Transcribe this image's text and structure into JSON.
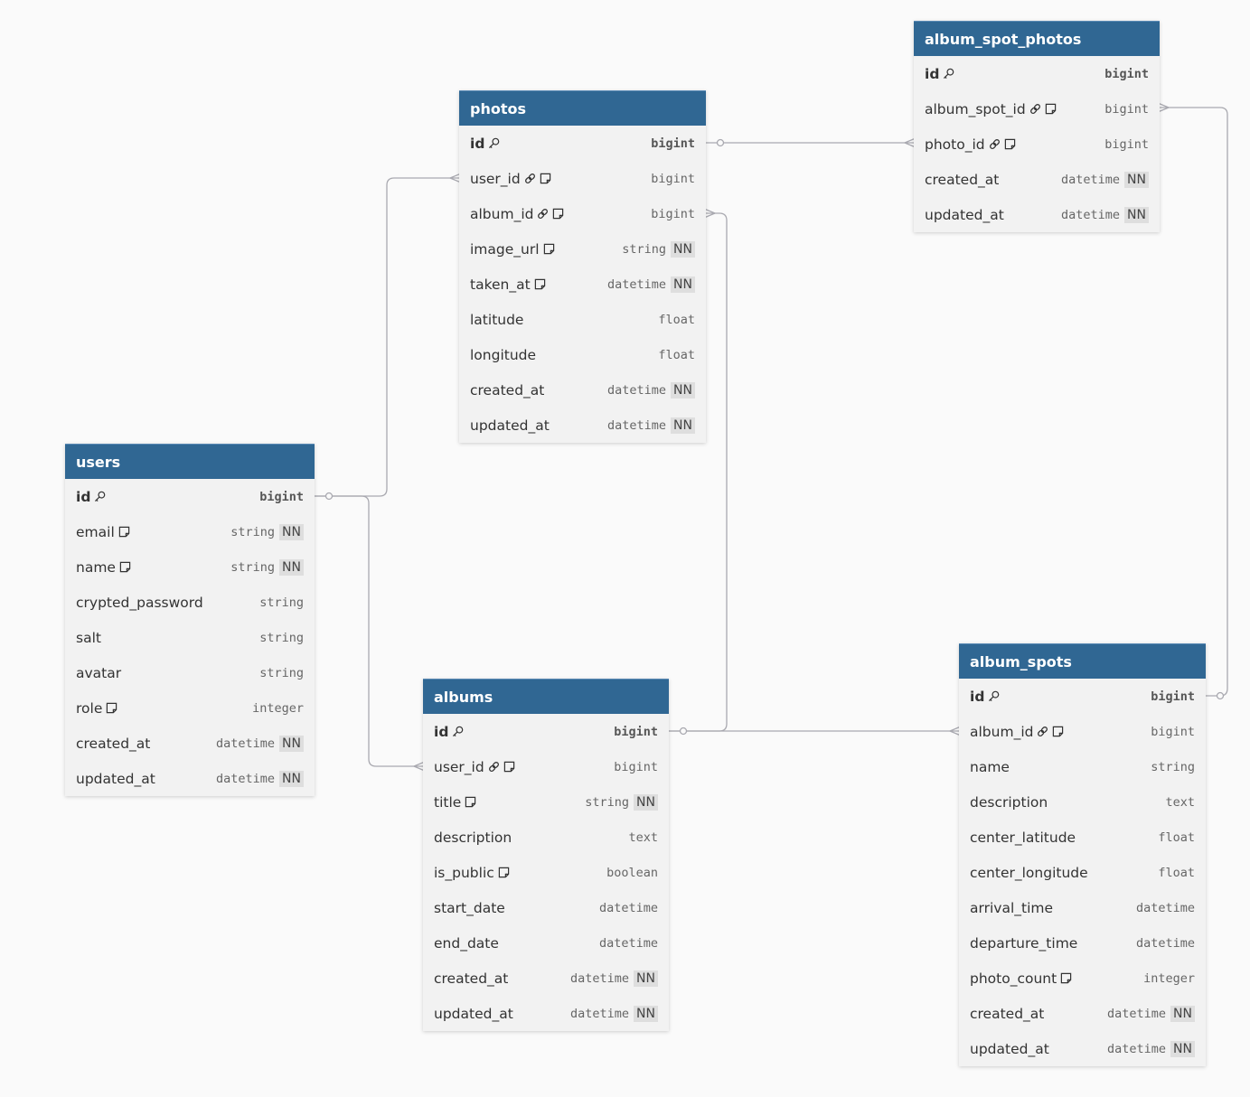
{
  "colors": {
    "header": "#306793",
    "body": "#f2f2f2",
    "line": "#a9a9b0"
  },
  "tables": [
    {
      "id": "album_spot_photos",
      "name": "album_spot_photos",
      "columns": [
        {
          "name": "id",
          "icons": [
            "key-icon"
          ],
          "type": "bigint",
          "pk": true
        },
        {
          "name": "album_spot_id",
          "icons": [
            "link-icon",
            "note-icon"
          ],
          "type": "bigint"
        },
        {
          "name": "photo_id",
          "icons": [
            "link-icon",
            "note-icon"
          ],
          "type": "bigint"
        },
        {
          "name": "created_at",
          "icons": [],
          "type": "datetime",
          "nn": "NN"
        },
        {
          "name": "updated_at",
          "icons": [],
          "type": "datetime",
          "nn": "NN"
        }
      ]
    },
    {
      "id": "photos",
      "name": "photos",
      "columns": [
        {
          "name": "id",
          "icons": [
            "key-icon"
          ],
          "type": "bigint",
          "pk": true
        },
        {
          "name": "user_id",
          "icons": [
            "link-icon",
            "note-icon"
          ],
          "type": "bigint"
        },
        {
          "name": "album_id",
          "icons": [
            "link-icon",
            "note-icon"
          ],
          "type": "bigint"
        },
        {
          "name": "image_url",
          "icons": [
            "note-icon"
          ],
          "type": "string",
          "nn": "NN"
        },
        {
          "name": "taken_at",
          "icons": [
            "note-icon"
          ],
          "type": "datetime",
          "nn": "NN"
        },
        {
          "name": "latitude",
          "icons": [],
          "type": "float"
        },
        {
          "name": "longitude",
          "icons": [],
          "type": "float"
        },
        {
          "name": "created_at",
          "icons": [],
          "type": "datetime",
          "nn": "NN"
        },
        {
          "name": "updated_at",
          "icons": [],
          "type": "datetime",
          "nn": "NN"
        }
      ]
    },
    {
      "id": "users",
      "name": "users",
      "columns": [
        {
          "name": "id",
          "icons": [
            "key-icon"
          ],
          "type": "bigint",
          "pk": true
        },
        {
          "name": "email",
          "icons": [
            "note-icon"
          ],
          "type": "string",
          "nn": "NN"
        },
        {
          "name": "name",
          "icons": [
            "note-icon"
          ],
          "type": "string",
          "nn": "NN"
        },
        {
          "name": "crypted_password",
          "icons": [],
          "type": "string"
        },
        {
          "name": "salt",
          "icons": [],
          "type": "string"
        },
        {
          "name": "avatar",
          "icons": [],
          "type": "string"
        },
        {
          "name": "role",
          "icons": [
            "note-icon"
          ],
          "type": "integer"
        },
        {
          "name": "created_at",
          "icons": [],
          "type": "datetime",
          "nn": "NN"
        },
        {
          "name": "updated_at",
          "icons": [],
          "type": "datetime",
          "nn": "NN"
        }
      ]
    },
    {
      "id": "albums",
      "name": "albums",
      "columns": [
        {
          "name": "id",
          "icons": [
            "key-icon"
          ],
          "type": "bigint",
          "pk": true
        },
        {
          "name": "user_id",
          "icons": [
            "link-icon",
            "note-icon"
          ],
          "type": "bigint"
        },
        {
          "name": "title",
          "icons": [
            "note-icon"
          ],
          "type": "string",
          "nn": "NN"
        },
        {
          "name": "description",
          "icons": [],
          "type": "text"
        },
        {
          "name": "is_public",
          "icons": [
            "note-icon"
          ],
          "type": "boolean"
        },
        {
          "name": "start_date",
          "icons": [],
          "type": "datetime"
        },
        {
          "name": "end_date",
          "icons": [],
          "type": "datetime"
        },
        {
          "name": "created_at",
          "icons": [],
          "type": "datetime",
          "nn": "NN"
        },
        {
          "name": "updated_at",
          "icons": [],
          "type": "datetime",
          "nn": "NN"
        }
      ]
    },
    {
      "id": "album_spots",
      "name": "album_spots",
      "columns": [
        {
          "name": "id",
          "icons": [
            "key-icon"
          ],
          "type": "bigint",
          "pk": true
        },
        {
          "name": "album_id",
          "icons": [
            "link-icon",
            "note-icon"
          ],
          "type": "bigint"
        },
        {
          "name": "name",
          "icons": [],
          "type": "string"
        },
        {
          "name": "description",
          "icons": [],
          "type": "text"
        },
        {
          "name": "center_latitude",
          "icons": [],
          "type": "float"
        },
        {
          "name": "center_longitude",
          "icons": [],
          "type": "float"
        },
        {
          "name": "arrival_time",
          "icons": [],
          "type": "datetime"
        },
        {
          "name": "departure_time",
          "icons": [],
          "type": "datetime"
        },
        {
          "name": "photo_count",
          "icons": [
            "note-icon"
          ],
          "type": "integer"
        },
        {
          "name": "created_at",
          "icons": [],
          "type": "datetime",
          "nn": "NN"
        },
        {
          "name": "updated_at",
          "icons": [],
          "type": "datetime",
          "nn": "NN"
        }
      ]
    }
  ],
  "relationships": [
    {
      "from": "users.id",
      "to": "photos.user_id",
      "cardinality": "one-to-many"
    },
    {
      "from": "users.id",
      "to": "albums.user_id",
      "cardinality": "one-to-many"
    },
    {
      "from": "photos.id",
      "to": "album_spot_photos.photo_id",
      "cardinality": "one-to-many"
    },
    {
      "from": "albums.id",
      "to": "photos.album_id",
      "cardinality": "one-to-many"
    },
    {
      "from": "albums.id",
      "to": "album_spots.album_id",
      "cardinality": "one-to-many"
    },
    {
      "from": "album_spots.id",
      "to": "album_spot_photos.album_spot_id",
      "cardinality": "one-to-many"
    }
  ]
}
